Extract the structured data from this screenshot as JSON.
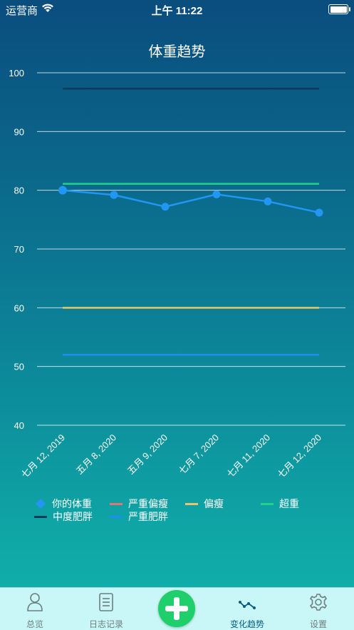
{
  "status_bar": {
    "carrier": "运营商",
    "time": "上午 11:22",
    "wifi_icon": "wifi-icon",
    "battery_icon": "battery-icon"
  },
  "chart_data": {
    "type": "line",
    "title": "体重趋势",
    "xlabel": "",
    "ylabel": "",
    "ylim": [
      40,
      100
    ],
    "y_ticks": [
      40,
      50,
      60,
      70,
      80,
      90,
      100
    ],
    "categories": [
      "七月 12, 2019",
      "五月 8, 2020",
      "五月 9, 2020",
      "七月 7, 2020",
      "七月 11, 2020",
      "七月 12, 2020"
    ],
    "grid": true,
    "legend_position": "bottom",
    "series": [
      {
        "name": "你的体重",
        "color": "#2196f3",
        "marker": "circle",
        "values": [
          80,
          79.2,
          77.2,
          79.3,
          78.1,
          76.2
        ]
      },
      {
        "name": "严重偏瘦",
        "color": "#e57373",
        "values": [
          null,
          null,
          null,
          null,
          null,
          null
        ]
      },
      {
        "name": "偏瘦",
        "color": "#e9c46a",
        "values": [
          60,
          60,
          60,
          60,
          60,
          60
        ]
      },
      {
        "name": "超重",
        "color": "#1ed38a",
        "values": [
          81.1,
          81.1,
          81.1,
          81.1,
          81.1,
          81.1
        ]
      },
      {
        "name": "中度肥胖",
        "color": "#0d3b5e",
        "values": [
          97.3,
          97.3,
          97.3,
          97.3,
          97.3,
          97.3
        ]
      },
      {
        "name": "严重肥胖",
        "color": "#1f8ef1",
        "values": [
          52,
          52,
          52,
          52,
          52,
          52
        ]
      }
    ]
  },
  "tab_bar": {
    "items": [
      {
        "label": "总览",
        "icon": "person-icon"
      },
      {
        "label": "日志记录",
        "icon": "document-icon"
      },
      {
        "label": "",
        "icon": "add-icon"
      },
      {
        "label": "变化趋势",
        "icon": "trend-icon"
      },
      {
        "label": "设置",
        "icon": "gear-icon"
      }
    ],
    "active_color": "#0a5d82",
    "inactive_color": "#6e7f7f",
    "add_color": "#1fcf6b"
  }
}
